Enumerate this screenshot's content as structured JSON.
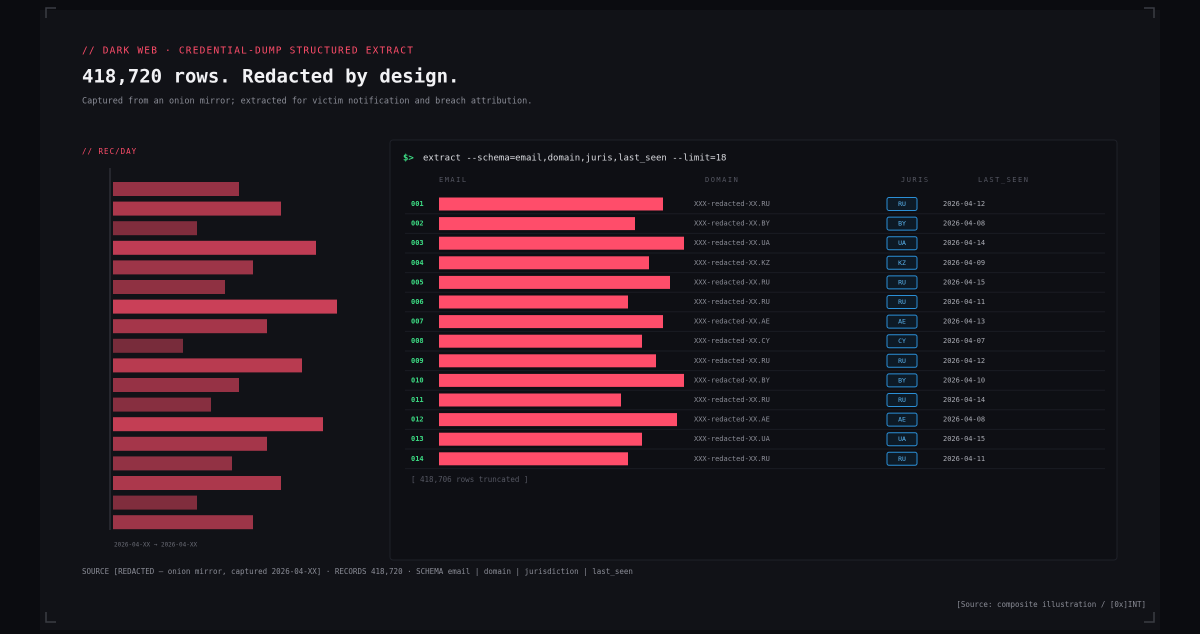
{
  "header": {
    "kicker": "// DARK WEB · CREDENTIAL-DUMP STRUCTURED EXTRACT",
    "title": "418,720 rows. Redacted by design.",
    "subtitle": "Captured from an onion mirror; extracted for victim notification and breach attribution."
  },
  "chart_data": {
    "type": "bar",
    "orientation": "horizontal",
    "title": "// REC/DAY",
    "x_label": "2026-04-XX → 2026-04-XX",
    "color": "#ff4d6a",
    "xlim": [
      0,
      16
    ],
    "values": [
      9,
      12,
      6,
      14.5,
      10,
      8,
      16,
      11,
      5,
      13.5,
      9,
      7,
      15,
      11,
      8.5,
      12,
      6,
      10
    ]
  },
  "terminal": {
    "prompt": "$>",
    "command": "extract --schema=email,domain,juris,last_seen --limit=18",
    "columns": [
      "EMAIL",
      "DOMAIN",
      "JURIS",
      "LAST_SEEN"
    ],
    "email_lim": [
      0,
      35
    ],
    "rows": [
      {
        "id": "001",
        "email_len": 32,
        "domain": "XXX-redacted-XX.RU",
        "juris": "RU",
        "last_seen": "2026-04-12"
      },
      {
        "id": "002",
        "email_len": 28,
        "domain": "XXX-redacted-XX.BY",
        "juris": "BY",
        "last_seen": "2026-04-08"
      },
      {
        "id": "003",
        "email_len": 35,
        "domain": "XXX-redacted-XX.UA",
        "juris": "UA",
        "last_seen": "2026-04-14"
      },
      {
        "id": "004",
        "email_len": 30,
        "domain": "XXX-redacted-XX.KZ",
        "juris": "KZ",
        "last_seen": "2026-04-09"
      },
      {
        "id": "005",
        "email_len": 33,
        "domain": "XXX-redacted-XX.RU",
        "juris": "RU",
        "last_seen": "2026-04-15"
      },
      {
        "id": "006",
        "email_len": 27,
        "domain": "XXX-redacted-XX.RU",
        "juris": "RU",
        "last_seen": "2026-04-11"
      },
      {
        "id": "007",
        "email_len": 32,
        "domain": "XXX-redacted-XX.AE",
        "juris": "AE",
        "last_seen": "2026-04-13"
      },
      {
        "id": "008",
        "email_len": 29,
        "domain": "XXX-redacted-XX.CY",
        "juris": "CY",
        "last_seen": "2026-04-07"
      },
      {
        "id": "009",
        "email_len": 31,
        "domain": "XXX-redacted-XX.RU",
        "juris": "RU",
        "last_seen": "2026-04-12"
      },
      {
        "id": "010",
        "email_len": 35,
        "domain": "XXX-redacted-XX.BY",
        "juris": "BY",
        "last_seen": "2026-04-10"
      },
      {
        "id": "011",
        "email_len": 26,
        "domain": "XXX-redacted-XX.RU",
        "juris": "RU",
        "last_seen": "2026-04-14"
      },
      {
        "id": "012",
        "email_len": 34,
        "domain": "XXX-redacted-XX.AE",
        "juris": "AE",
        "last_seen": "2026-04-08"
      },
      {
        "id": "013",
        "email_len": 29,
        "domain": "XXX-redacted-XX.UA",
        "juris": "UA",
        "last_seen": "2026-04-15"
      },
      {
        "id": "014",
        "email_len": 27,
        "domain": "XXX-redacted-XX.RU",
        "juris": "RU",
        "last_seen": "2026-04-11"
      }
    ],
    "truncated": "[ 418,706 rows truncated ]"
  },
  "footer": {
    "source": "SOURCE [REDACTED — onion mirror, captured 2026-04-XX] · RECORDS 418,720 · SCHEMA email | domain | jurisdiction | last_seen",
    "credit": "[Source: composite illustration / [0x]INT]"
  }
}
